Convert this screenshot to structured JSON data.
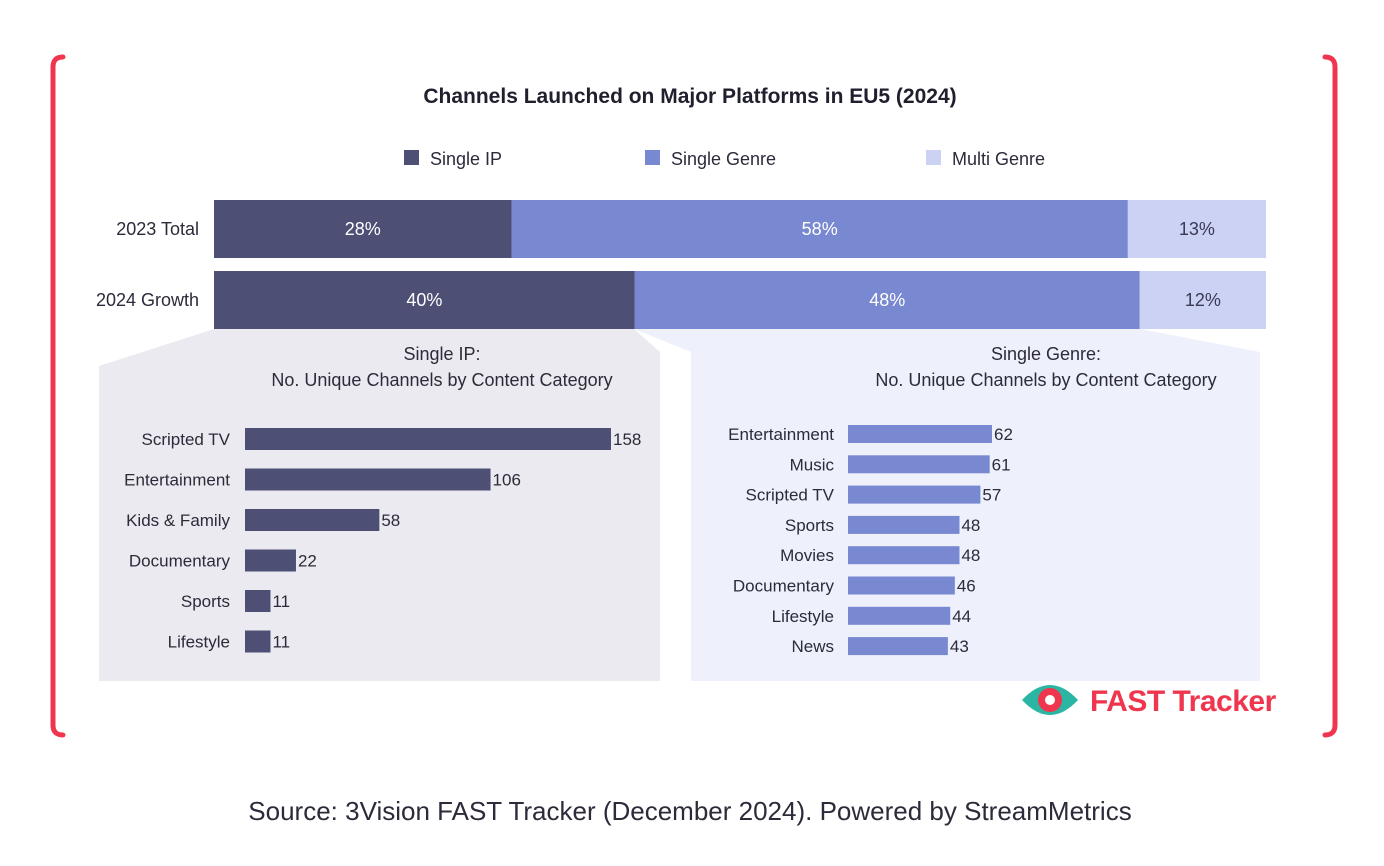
{
  "chart_data": [
    {
      "type": "stacked-bar",
      "title": "Channels Launched on Major Platforms in EU5 (2024)",
      "legend": [
        "Single IP",
        "Single Genre",
        "Multi Genre"
      ],
      "categories": [
        "2023 Total",
        "2024 Growth"
      ],
      "series": [
        {
          "name": "Single IP",
          "values": [
            28,
            40
          ],
          "labels": [
            "28%",
            "40%"
          ],
          "color": "#4d4f75"
        },
        {
          "name": "Single Genre",
          "values": [
            58,
            48
          ],
          "labels": [
            "58%",
            "48%"
          ],
          "color": "#7888d1"
        },
        {
          "name": "Multi Genre",
          "values": [
            13,
            12
          ],
          "labels": [
            "13%",
            "12%"
          ],
          "color": "#cbd2f3"
        }
      ],
      "unit": "%"
    },
    {
      "type": "bar",
      "orientation": "horizontal",
      "title_line1": "Single IP:",
      "title_line2": "No. Unique Channels by Content Category",
      "categories": [
        "Scripted TV",
        "Entertainment",
        "Kids & Family",
        "Documentary",
        "Sports",
        "Lifestyle"
      ],
      "values": [
        158,
        106,
        58,
        22,
        11,
        11
      ],
      "xlim": [
        0,
        158
      ],
      "color": "#4d4f75"
    },
    {
      "type": "bar",
      "orientation": "horizontal",
      "title_line1": "Single Genre:",
      "title_line2": "No. Unique Channels by Content Category",
      "categories": [
        "Entertainment",
        "Music",
        "Scripted TV",
        "Sports",
        "Movies",
        "Documentary",
        "Lifestyle",
        "News"
      ],
      "values": [
        62,
        61,
        57,
        48,
        48,
        46,
        44,
        43
      ],
      "xlim": [
        0,
        62
      ],
      "color": "#7888d1"
    }
  ],
  "brand": {
    "name": "FAST Tracker",
    "color": "#f0364e"
  },
  "source": "Source: 3Vision FAST Tracker (December 2024). Powered by StreamMetrics"
}
